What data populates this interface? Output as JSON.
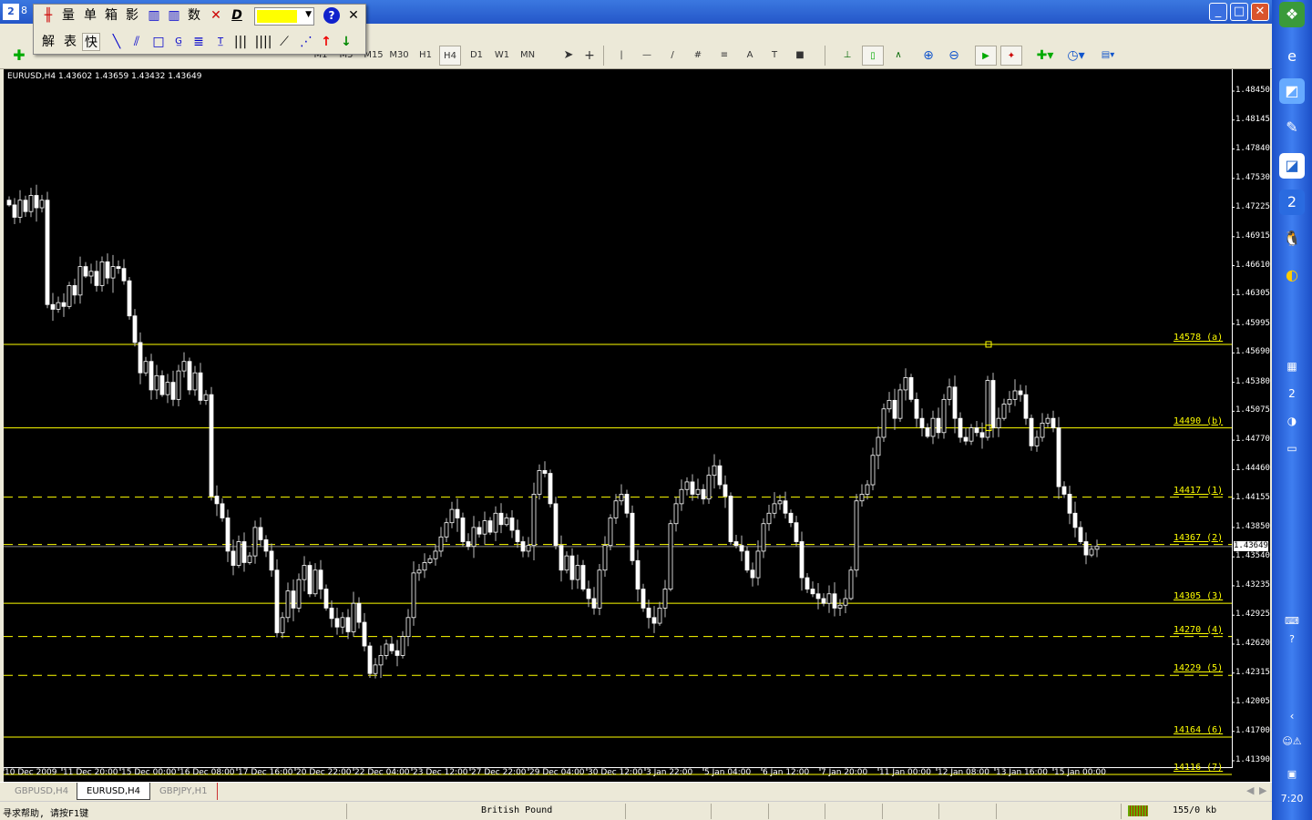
{
  "window": {
    "title_fragment": "8",
    "minimize": "_",
    "maximize": "□",
    "close": "✕"
  },
  "floating_toolbar": {
    "row1": [
      "量",
      "单",
      "箱",
      "影",
      "数"
    ],
    "row2": [
      "解",
      "表",
      "快"
    ],
    "color": "#ffff00",
    "help": "?",
    "close": "✕"
  },
  "toolbar": {
    "timeframes": [
      "M1",
      "M5",
      "M15",
      "M30",
      "H1",
      "H4",
      "D1",
      "W1",
      "MN"
    ],
    "active_timeframe": "H4"
  },
  "chart": {
    "header": "EURUSD,H4  1.43602 1.43659 1.43432 1.43649",
    "price_axis": [
      "1.48450",
      "1.48145",
      "1.47840",
      "1.47530",
      "1.47225",
      "1.46915",
      "1.46610",
      "1.46305",
      "1.45995",
      "1.45690",
      "1.45380",
      "1.45075",
      "1.44770",
      "1.44460",
      "1.44155",
      "1.43850",
      "1.43540",
      "1.43235",
      "1.42925",
      "1.42620",
      "1.42315",
      "1.42005",
      "1.41700",
      "1.41390"
    ],
    "current_price": "1.43649",
    "time_axis": [
      "10 Dec 2009",
      "11 Dec 20:00",
      "15 Dec 00:00",
      "16 Dec 08:00",
      "17 Dec 16:00",
      "20 Dec 22:00",
      "22 Dec 04:00",
      "23 Dec 12:00",
      "27 Dec 22:00",
      "29 Dec 04:00",
      "30 Dec 12:00",
      "3 Jan 22:00",
      "5 Jan 04:00",
      "6 Jan 12:00",
      "7 Jan 20:00",
      "11 Jan 00:00",
      "12 Jan 08:00",
      "13 Jan 16:00",
      "15 Jan 00:00"
    ],
    "levels": [
      {
        "label": "14578 (a)",
        "price": 1.4578,
        "style": "solid"
      },
      {
        "label": "14490 (b)",
        "price": 1.449,
        "style": "solid"
      },
      {
        "label": "14417 (1)",
        "price": 1.4417,
        "style": "dashed"
      },
      {
        "label": "14367 (2)",
        "price": 1.4367,
        "style": "dashed"
      },
      {
        "label": "14305 (3)",
        "price": 1.4305,
        "style": "solid"
      },
      {
        "label": "14270 (4)",
        "price": 1.427,
        "style": "dashed"
      },
      {
        "label": "14229 (5)",
        "price": 1.4229,
        "style": "dashed"
      },
      {
        "label": "14164 (6)",
        "price": 1.4164,
        "style": "solid"
      },
      {
        "label": "14116 (7)",
        "price": 1.4116,
        "style": "solid"
      }
    ],
    "level_color": "#ffff00"
  },
  "chart_data": {
    "type": "candlestick",
    "symbol": "EURUSD",
    "timeframe": "H4",
    "ylim": [
      1.4139,
      1.4845
    ],
    "closes": [
      1.4725,
      1.4712,
      1.473,
      1.4718,
      1.4735,
      1.4722,
      1.473,
      1.462,
      1.4615,
      1.4622,
      1.4618,
      1.464,
      1.463,
      1.466,
      1.465,
      1.4655,
      1.464,
      1.4665,
      1.4648,
      1.466,
      1.4658,
      1.4645,
      1.4608,
      1.458,
      1.4548,
      1.456,
      1.453,
      1.4545,
      1.4525,
      1.4538,
      1.452,
      1.455,
      1.456,
      1.453,
      1.4548,
      1.4519,
      1.4525,
      1.4418,
      1.441,
      1.4395,
      1.436,
      1.4345,
      1.437,
      1.4348,
      1.4355,
      1.4385,
      1.4372,
      1.436,
      1.434,
      1.4274,
      1.429,
      1.4318,
      1.43,
      1.433,
      1.4345,
      1.4315,
      1.434,
      1.432,
      1.43,
      1.4289,
      1.428,
      1.429,
      1.4275,
      1.4305,
      1.4285,
      1.426,
      1.4231,
      1.424,
      1.425,
      1.4262,
      1.4255,
      1.425,
      1.427,
      1.429,
      1.4337,
      1.434,
      1.4348,
      1.4352,
      1.436,
      1.4375,
      1.439,
      1.4404,
      1.4395,
      1.437,
      1.4365,
      1.4385,
      1.4378,
      1.4392,
      1.438,
      1.44,
      1.4388,
      1.4395,
      1.4382,
      1.437,
      1.436,
      1.4366,
      1.442,
      1.4445,
      1.4442,
      1.441,
      1.4366,
      1.434,
      1.4355,
      1.433,
      1.4345,
      1.432,
      1.431,
      1.43,
      1.434,
      1.4366,
      1.4395,
      1.4413,
      1.442,
      1.44,
      1.435,
      1.432,
      1.43,
      1.429,
      1.4284,
      1.43,
      1.432,
      1.4389,
      1.441,
      1.4425,
      1.4433,
      1.442,
      1.4425,
      1.4415,
      1.444,
      1.445,
      1.443,
      1.4418,
      1.437,
      1.4366,
      1.436,
      1.434,
      1.4332,
      1.436,
      1.4389,
      1.44,
      1.441,
      1.4413,
      1.44,
      1.439,
      1.437,
      1.4332,
      1.432,
      1.4315,
      1.431,
      1.4305,
      1.4315,
      1.43,
      1.4303,
      1.431,
      1.434,
      1.4413,
      1.442,
      1.443,
      1.4461,
      1.448,
      1.451,
      1.4519,
      1.45,
      1.453,
      1.4543,
      1.452,
      1.45,
      1.449,
      1.4481,
      1.45,
      1.4485,
      1.452,
      1.4533,
      1.45,
      1.448,
      1.4476,
      1.449,
      1.4485,
      1.448,
      1.454,
      1.449,
      1.45,
      1.4515,
      1.452,
      1.4529,
      1.4525,
      1.45,
      1.4471,
      1.448,
      1.4495,
      1.45,
      1.449,
      1.4428,
      1.442,
      1.44,
      1.4385,
      1.437,
      1.4356,
      1.4362,
      1.43649
    ]
  },
  "tabs": [
    {
      "label": "GBPUSD,H4"
    },
    {
      "label": "EURUSD,H4",
      "active": true
    },
    {
      "label": "GBPJPY,H1"
    }
  ],
  "status": {
    "help": "寻求帮助, 请按F1键",
    "profile": "British Pound",
    "traffic": "155/0 kb"
  },
  "taskbar": {
    "clock": "7:20"
  }
}
